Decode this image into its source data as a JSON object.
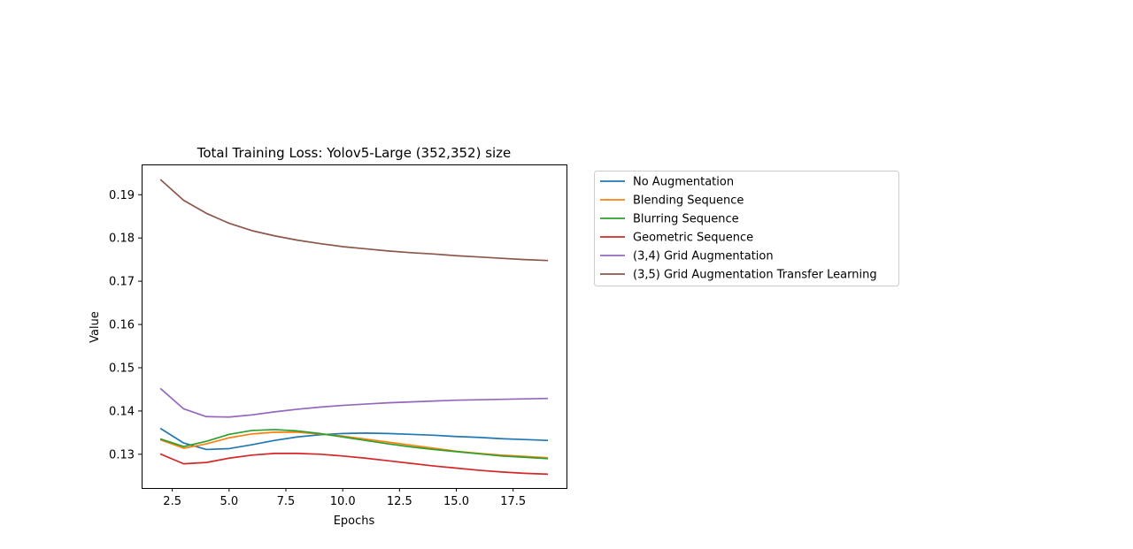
{
  "chart_data": {
    "type": "line",
    "title": "Total Training Loss: Yolov5-Large (352,352) size",
    "xlabel": "Epochs",
    "ylabel": "Value",
    "xlim": [
      1.15,
      19.85
    ],
    "ylim": [
      0.1222,
      0.197
    ],
    "xticks": [
      2.5,
      5.0,
      7.5,
      10.0,
      12.5,
      15.0,
      17.5
    ],
    "xtick_labels": [
      "2.5",
      "5.0",
      "7.5",
      "10.0",
      "12.5",
      "15.0",
      "17.5"
    ],
    "yticks": [
      0.13,
      0.14,
      0.15,
      0.16,
      0.17,
      0.18,
      0.19
    ],
    "ytick_labels": [
      "0.13",
      "0.14",
      "0.15",
      "0.16",
      "0.17",
      "0.18",
      "0.19"
    ],
    "grid": false,
    "legend_position": "outside-right-top",
    "x": [
      2,
      3,
      4,
      5,
      6,
      7,
      8,
      9,
      10,
      11,
      12,
      13,
      14,
      15,
      16,
      17,
      18,
      19
    ],
    "series": [
      {
        "name": "No Augmentation",
        "color": "#1f77b4",
        "values": [
          0.1359,
          0.1326,
          0.1311,
          0.1313,
          0.1322,
          0.1332,
          0.134,
          0.1345,
          0.1348,
          0.1349,
          0.1348,
          0.1346,
          0.1344,
          0.1341,
          0.1339,
          0.1336,
          0.1334,
          0.1332
        ]
      },
      {
        "name": "Blending Sequence",
        "color": "#ff7f0e",
        "values": [
          0.1333,
          0.1314,
          0.1324,
          0.1338,
          0.1347,
          0.1351,
          0.1351,
          0.1347,
          0.1342,
          0.1335,
          0.1328,
          0.1321,
          0.1314,
          0.1307,
          0.1302,
          0.1298,
          0.1295,
          0.1292
        ]
      },
      {
        "name": "Blurring Sequence",
        "color": "#2ca02c",
        "values": [
          0.1335,
          0.1318,
          0.133,
          0.1346,
          0.1355,
          0.1357,
          0.1354,
          0.1348,
          0.134,
          0.1332,
          0.1324,
          0.1317,
          0.1311,
          0.1306,
          0.1301,
          0.1296,
          0.1293,
          0.129
        ]
      },
      {
        "name": "Geometric Sequence",
        "color": "#d62728",
        "values": [
          0.13,
          0.1278,
          0.1281,
          0.1291,
          0.1298,
          0.1302,
          0.1302,
          0.13,
          0.1296,
          0.1291,
          0.1285,
          0.1279,
          0.1273,
          0.1268,
          0.1263,
          0.1259,
          0.1256,
          0.1254
        ]
      },
      {
        "name": "(3,4) Grid Augmentation",
        "color": "#9467bd",
        "values": [
          0.1451,
          0.1405,
          0.1387,
          0.1386,
          0.1391,
          0.1398,
          0.1404,
          0.1409,
          0.1413,
          0.1416,
          0.1419,
          0.1421,
          0.1423,
          0.1425,
          0.1426,
          0.1427,
          0.1428,
          0.1429
        ]
      },
      {
        "name": "(3,5) Grid Augmentation Transfer Learning",
        "color": "#8c564b",
        "values": [
          0.1934,
          0.1887,
          0.1857,
          0.1834,
          0.1817,
          0.1805,
          0.1795,
          0.1787,
          0.178,
          0.1775,
          0.177,
          0.1766,
          0.1763,
          0.1759,
          0.1756,
          0.1753,
          0.175,
          0.1748
        ]
      }
    ]
  }
}
